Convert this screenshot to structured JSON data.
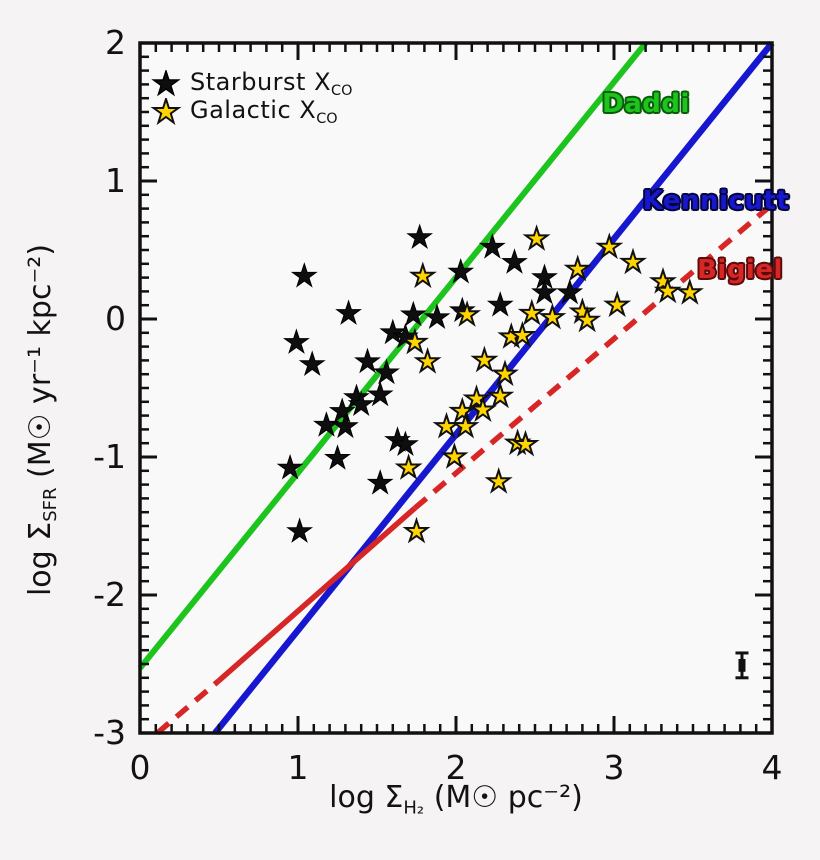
{
  "figure": {
    "bg": "#f5f3f4",
    "plot_bg": "#faf9fa",
    "frame_color": "#111111",
    "tick_color": "#111111",
    "text_color": "#121212"
  },
  "legend": {
    "items": [
      {
        "icon": "black-star-icon",
        "fill": "#0e0e0e",
        "edge": "#000000",
        "label": "Starburst X",
        "sub": "CO"
      },
      {
        "icon": "yellow-star-icon",
        "fill": "#ffd400",
        "edge": "#111111",
        "label": "Galactic X",
        "sub": "CO"
      }
    ]
  },
  "axes": {
    "x": {
      "title_prefix": "log Σ",
      "title_sub": "H₂",
      "title_suffix": " (M☉ pc⁻²)",
      "tick_values": [
        0,
        1,
        2,
        3,
        4
      ],
      "tick_labels": [
        "0",
        "1",
        "2",
        "3",
        "4"
      ],
      "minor_step": 0.1
    },
    "y": {
      "title_prefix": "log Σ",
      "title_sub": "SFR",
      "title_suffix": " (M☉ yr⁻¹ kpc⁻²)",
      "tick_values": [
        2,
        1,
        0,
        -1,
        -2,
        -3
      ],
      "tick_labels": [
        "2",
        "1",
        "0",
        "-1",
        "-2",
        "-3"
      ],
      "minor_step": 0.1
    }
  },
  "chart_data": {
    "type": "scatter",
    "title": "",
    "xlabel": "log Σ_H2 (M☉ pc⁻²)",
    "ylabel": "log Σ_SFR (M☉ yr⁻¹ kpc⁻²)",
    "xlim": [
      0,
      4
    ],
    "ylim": [
      -3,
      2
    ],
    "grid": false,
    "legend_position": "top-left",
    "series": [
      {
        "name": "Starburst X_CO",
        "marker": "star",
        "fill": "#0e0e0e",
        "edge": "#000000",
        "points": [
          [
            0.95,
            -1.08
          ],
          [
            0.99,
            -0.17
          ],
          [
            1.01,
            -1.54
          ],
          [
            1.04,
            0.31
          ],
          [
            1.09,
            -0.33
          ],
          [
            1.18,
            -0.77
          ],
          [
            1.25,
            -1.01
          ],
          [
            1.28,
            -0.67
          ],
          [
            1.3,
            -0.78
          ],
          [
            1.32,
            0.04
          ],
          [
            1.37,
            -0.57
          ],
          [
            1.4,
            -0.62
          ],
          [
            1.44,
            -0.31
          ],
          [
            1.52,
            -0.55
          ],
          [
            1.52,
            -1.19
          ],
          [
            1.56,
            -0.39
          ],
          [
            1.6,
            -0.1
          ],
          [
            1.68,
            -0.13
          ],
          [
            1.63,
            -0.88
          ],
          [
            1.68,
            -0.91
          ],
          [
            1.73,
            0.03
          ],
          [
            1.77,
            0.59
          ],
          [
            1.88,
            0.01
          ],
          [
            2.03,
            0.34
          ],
          [
            2.04,
            0.06
          ],
          [
            2.23,
            0.52
          ],
          [
            2.28,
            0.1
          ],
          [
            2.37,
            0.41
          ],
          [
            2.56,
            0.3
          ],
          [
            2.56,
            0.19
          ],
          [
            2.72,
            0.19
          ]
        ]
      },
      {
        "name": "Galactic X_CO",
        "marker": "star",
        "fill": "#ffd400",
        "edge": "#111111",
        "points": [
          [
            1.7,
            -1.08
          ],
          [
            1.74,
            -0.17
          ],
          [
            1.75,
            -1.54
          ],
          [
            1.79,
            0.31
          ],
          [
            1.82,
            -0.31
          ],
          [
            1.94,
            -0.78
          ],
          [
            1.99,
            -1.0
          ],
          [
            2.04,
            -0.67
          ],
          [
            2.06,
            -0.78
          ],
          [
            2.07,
            0.03
          ],
          [
            2.13,
            -0.58
          ],
          [
            2.17,
            -0.66
          ],
          [
            2.18,
            -0.3
          ],
          [
            2.27,
            -1.18
          ],
          [
            2.28,
            -0.56
          ],
          [
            2.31,
            -0.4
          ],
          [
            2.35,
            -0.13
          ],
          [
            2.42,
            -0.12
          ],
          [
            2.39,
            -0.9
          ],
          [
            2.44,
            -0.91
          ],
          [
            2.48,
            0.04
          ],
          [
            2.51,
            0.58
          ],
          [
            2.61,
            0.01
          ],
          [
            2.77,
            0.36
          ],
          [
            2.8,
            0.05
          ],
          [
            2.83,
            -0.01
          ],
          [
            2.97,
            0.52
          ],
          [
            3.02,
            0.1
          ],
          [
            3.12,
            0.41
          ],
          [
            3.31,
            0.27
          ],
          [
            3.34,
            0.2
          ],
          [
            3.48,
            0.19
          ]
        ]
      }
    ],
    "lines": [
      {
        "label": "Daddi",
        "color": "#1ec41e",
        "outline": "#0a5c0a",
        "segments": [
          {
            "style": "solid",
            "pts": [
              [
                0.0,
                -2.53
              ],
              [
                3.2,
                2.0
              ]
            ]
          }
        ]
      },
      {
        "label": "Kennicutt",
        "color": "#1717cf",
        "outline": "#05053a",
        "segments": [
          {
            "style": "solid",
            "pts": [
              [
                0.475,
                -3.0
              ],
              [
                4.0,
                2.0
              ]
            ]
          }
        ]
      },
      {
        "label": "Bigiel",
        "color": "#d62626",
        "outline": "#5a0a0a",
        "segments": [
          {
            "style": "dashed",
            "pts": [
              [
                0.11,
                -3.0
              ],
              [
                0.5,
                -2.62
              ]
            ]
          },
          {
            "style": "solid",
            "pts": [
              [
                0.5,
                -2.62
              ],
              [
                1.74,
                -1.37
              ]
            ]
          },
          {
            "style": "dashed",
            "pts": [
              [
                1.74,
                -1.37
              ],
              [
                4.0,
                0.83
              ]
            ]
          }
        ]
      }
    ],
    "error_bar": {
      "x": 3.81,
      "y": -2.51,
      "yerr": 0.09,
      "color": "#111111"
    }
  }
}
